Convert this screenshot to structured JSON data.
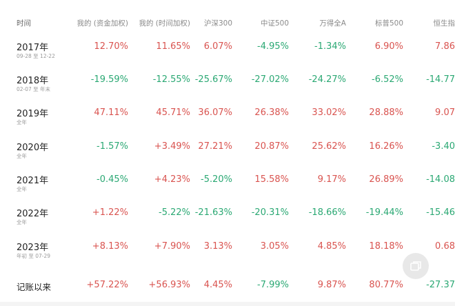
{
  "columns": [
    "时间",
    "我的 (资金加权)",
    "我的 (时间加权)",
    "沪深300",
    "中证500",
    "万得全A",
    "标普500",
    "恒生指"
  ],
  "rows": [
    {
      "year": "2017年",
      "sub": "09-28 至 12-22",
      "values": [
        "12.70%",
        "11.65%",
        "6.07%",
        "-4.95%",
        "-1.34%",
        "6.90%",
        "7.86"
      ],
      "signs": [
        "pos",
        "pos",
        "pos",
        "neg",
        "neg",
        "pos",
        "pos"
      ]
    },
    {
      "year": "2018年",
      "sub": "02-07 至 年末",
      "values": [
        "-19.59%",
        "-12.55%",
        "-25.67%",
        "-27.02%",
        "-24.27%",
        "-6.52%",
        "-14.77"
      ],
      "signs": [
        "neg",
        "neg",
        "neg",
        "neg",
        "neg",
        "neg",
        "neg"
      ]
    },
    {
      "year": "2019年",
      "sub": "全年",
      "values": [
        "47.11%",
        "45.71%",
        "36.07%",
        "26.38%",
        "33.02%",
        "28.88%",
        "9.07"
      ],
      "signs": [
        "pos",
        "pos",
        "pos",
        "pos",
        "pos",
        "pos",
        "pos"
      ]
    },
    {
      "year": "2020年",
      "sub": "全年",
      "values": [
        "-1.57%",
        "+3.49%",
        "27.21%",
        "20.87%",
        "25.62%",
        "16.26%",
        "-3.40"
      ],
      "signs": [
        "neg",
        "pos",
        "pos",
        "pos",
        "pos",
        "pos",
        "neg"
      ]
    },
    {
      "year": "2021年",
      "sub": "全年",
      "values": [
        "-0.45%",
        "+4.23%",
        "-5.20%",
        "15.58%",
        "9.17%",
        "26.89%",
        "-14.08"
      ],
      "signs": [
        "neg",
        "pos",
        "neg",
        "pos",
        "pos",
        "pos",
        "neg"
      ]
    },
    {
      "year": "2022年",
      "sub": "全年",
      "values": [
        "+1.22%",
        "-5.22%",
        "-21.63%",
        "-20.31%",
        "-18.66%",
        "-19.44%",
        "-15.46"
      ],
      "signs": [
        "pos",
        "neg",
        "neg",
        "neg",
        "neg",
        "neg",
        "neg"
      ]
    },
    {
      "year": "2023年",
      "sub": "年初 至 07-29",
      "values": [
        "+8.13%",
        "+7.90%",
        "3.13%",
        "3.05%",
        "4.85%",
        "18.18%",
        "0.68"
      ],
      "signs": [
        "pos",
        "pos",
        "pos",
        "pos",
        "pos",
        "pos",
        "pos"
      ]
    }
  ],
  "total": {
    "label": "记账以来",
    "values": [
      "+57.22%",
      "+56.93%",
      "4.45%",
      "-7.99%",
      "9.87%",
      "80.77%",
      "-27.37"
    ],
    "signs": [
      "pos",
      "pos",
      "pos",
      "neg",
      "pos",
      "pos",
      "neg"
    ]
  },
  "colors": {
    "positive": "#d9534f",
    "negative": "#2aa873"
  },
  "fab_icon": "copy-icon"
}
